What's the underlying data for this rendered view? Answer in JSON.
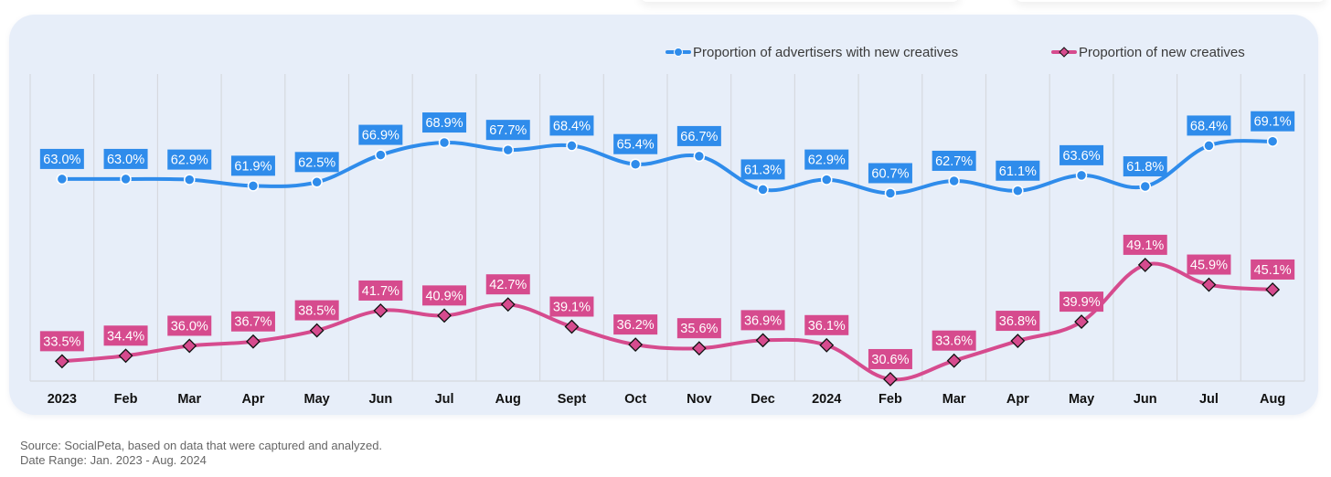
{
  "chart_data": {
    "type": "line",
    "title": "",
    "xlabel": "",
    "ylabel": "",
    "categories": [
      "2023",
      "Feb",
      "Mar",
      "Apr",
      "May",
      "Jun",
      "Jul",
      "Aug",
      "Sept",
      "Oct",
      "Nov",
      "Dec",
      "2024",
      "Feb",
      "Mar",
      "Apr",
      "May",
      "Jun",
      "Jul",
      "Aug"
    ],
    "ylim": [
      30.3,
      80
    ],
    "grid": "vertical",
    "legend_position": "top-right",
    "series": [
      {
        "name": "Proportion of advertisers with new creatives",
        "color": "#2f8ceb",
        "marker": "circle",
        "values": [
          63.0,
          63.0,
          62.9,
          61.9,
          62.5,
          66.9,
          68.9,
          67.7,
          68.4,
          65.4,
          66.7,
          61.3,
          62.9,
          60.7,
          62.7,
          61.1,
          63.6,
          61.8,
          68.4,
          69.1
        ],
        "labels": [
          "63.0%",
          "63.0%",
          "62.9%",
          "61.9%",
          "62.5%",
          "66.9%",
          "68.9%",
          "67.7%",
          "68.4%",
          "65.4%",
          "66.7%",
          "61.3%",
          "62.9%",
          "60.7%",
          "62.7%",
          "61.1%",
          "63.6%",
          "61.8%",
          "68.4%",
          "69.1%"
        ]
      },
      {
        "name": "Proportion of new creatives",
        "color": "#d64b8e",
        "marker": "diamond",
        "values": [
          33.5,
          34.4,
          36.0,
          36.7,
          38.5,
          41.7,
          40.9,
          42.7,
          39.1,
          36.2,
          35.6,
          36.9,
          36.1,
          30.6,
          33.6,
          36.8,
          39.9,
          49.1,
          45.9,
          45.1
        ],
        "labels": [
          "33.5%",
          "34.4%",
          "36.0%",
          "36.7%",
          "38.5%",
          "41.7%",
          "40.9%",
          "42.7%",
          "39.1%",
          "36.2%",
          "35.6%",
          "36.9%",
          "36.1%",
          "30.6%",
          "33.6%",
          "36.8%",
          "39.9%",
          "49.1%",
          "45.9%",
          "45.1%"
        ]
      }
    ]
  },
  "legend": {
    "series1": "Proportion of advertisers with new creatives",
    "series2": "Proportion of new creatives"
  },
  "footer": {
    "source": "Source: SocialPeta, based on data that were captured and analyzed.",
    "date_range": "Date Range: Jan. 2023 - Aug. 2024"
  }
}
